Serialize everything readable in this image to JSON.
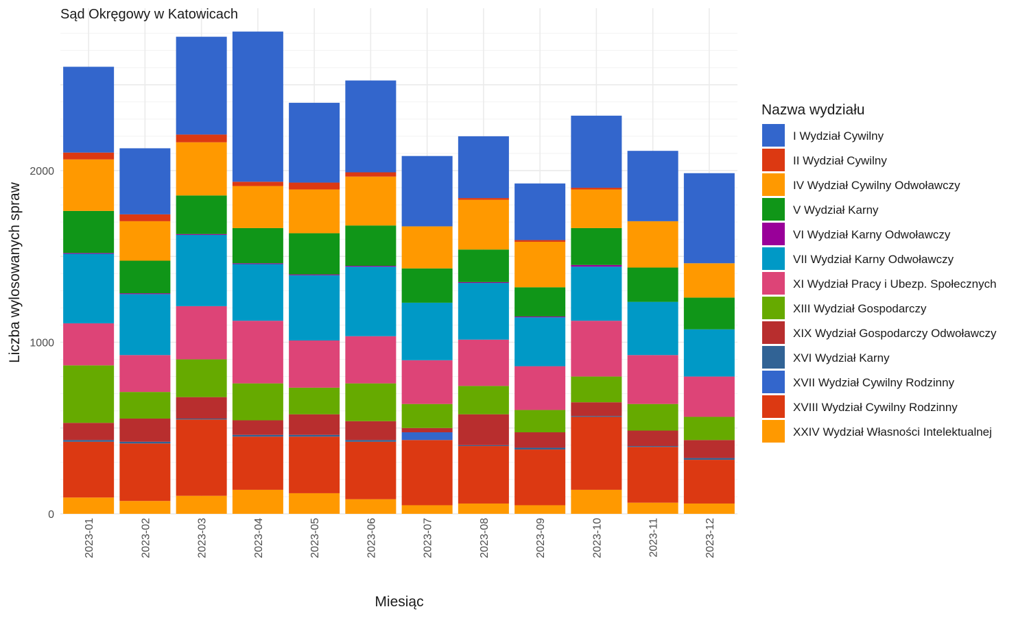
{
  "chart_data": {
    "type": "bar",
    "stacked": true,
    "title": "Sąd Okręgowy w Katowicach",
    "xlabel": "Miesiąc",
    "ylabel": "Liczba wylosowanych spraw",
    "ylim": [
      0,
      2800
    ],
    "yticks": [
      0,
      1000,
      2000
    ],
    "grid": true,
    "legend_title": "Nazwa wydziału",
    "legend_position": "right",
    "categories": [
      "2023-01",
      "2023-02",
      "2023-03",
      "2023-04",
      "2023-05",
      "2023-06",
      "2023-07",
      "2023-08",
      "2023-09",
      "2023-10",
      "2023-11",
      "2023-12"
    ],
    "series": [
      {
        "name": "XXIV Wydział Własności Intelektualnej",
        "color": "#FF9900",
        "values": [
          95,
          75,
          105,
          140,
          120,
          85,
          50,
          60,
          50,
          140,
          65,
          60
        ]
      },
      {
        "name": "XVIII Wydział Cywilny Rodzinny",
        "color": "#DC3912",
        "values": [
          325,
          335,
          445,
          310,
          330,
          335,
          380,
          335,
          325,
          425,
          325,
          255
        ]
      },
      {
        "name": "XVII Wydział Cywilny Rodzinny",
        "color": "#3366CC",
        "values": [
          0,
          0,
          0,
          0,
          0,
          0,
          45,
          0,
          0,
          0,
          0,
          0
        ]
      },
      {
        "name": "XVI Wydział Karny",
        "color": "#316395",
        "values": [
          10,
          10,
          5,
          10,
          10,
          10,
          0,
          5,
          10,
          5,
          5,
          10
        ]
      },
      {
        "name": "XIX Wydział Gospodarczy Odwoławczy",
        "color": "#B82E2E",
        "values": [
          100,
          135,
          125,
          85,
          120,
          110,
          25,
          180,
          90,
          80,
          90,
          105
        ]
      },
      {
        "name": "XIII Wydział Gospodarczy",
        "color": "#66AA00",
        "values": [
          335,
          155,
          220,
          215,
          155,
          220,
          140,
          165,
          130,
          150,
          155,
          135
        ]
      },
      {
        "name": "XI Wydział Pracy i Ubezp. Społecznych",
        "color": "#DD4477",
        "values": [
          245,
          215,
          310,
          365,
          275,
          275,
          255,
          270,
          255,
          325,
          285,
          235
        ]
      },
      {
        "name": "VII Wydział Karny Odwoławczy",
        "color": "#0099C6",
        "values": [
          405,
          355,
          415,
          330,
          380,
          405,
          335,
          330,
          285,
          315,
          310,
          275
        ]
      },
      {
        "name": "VI Wydział Karny Odwoławczy",
        "color": "#990099",
        "values": [
          5,
          5,
          5,
          5,
          5,
          5,
          0,
          5,
          5,
          10,
          0,
          0
        ]
      },
      {
        "name": "V Wydział Karny",
        "color": "#109618",
        "values": [
          245,
          190,
          225,
          205,
          240,
          235,
          200,
          190,
          170,
          215,
          200,
          185
        ]
      },
      {
        "name": "IV Wydział Cywilny Odwoławczy",
        "color": "#FF9900",
        "values": [
          300,
          230,
          310,
          245,
          255,
          285,
          245,
          290,
          265,
          225,
          270,
          200
        ]
      },
      {
        "name": "II Wydział Cywilny",
        "color": "#DC3912",
        "values": [
          40,
          40,
          45,
          25,
          40,
          25,
          0,
          10,
          10,
          10,
          0,
          0
        ]
      },
      {
        "name": "I Wydział Cywilny",
        "color": "#3366CC",
        "values": [
          500,
          385,
          570,
          875,
          465,
          535,
          410,
          360,
          330,
          420,
          410,
          525
        ]
      }
    ],
    "legend": [
      {
        "label": "I Wydział Cywilny",
        "color": "#3366CC"
      },
      {
        "label": "II Wydział Cywilny",
        "color": "#DC3912"
      },
      {
        "label": "IV Wydział Cywilny Odwoławczy",
        "color": "#FF9900"
      },
      {
        "label": "V Wydział Karny",
        "color": "#109618"
      },
      {
        "label": "VI Wydział Karny Odwoławczy",
        "color": "#990099"
      },
      {
        "label": "VII Wydział Karny Odwoławczy",
        "color": "#0099C6"
      },
      {
        "label": "XI Wydział Pracy i Ubezp. Społecznych",
        "color": "#DD4477"
      },
      {
        "label": "XIII Wydział Gospodarczy",
        "color": "#66AA00"
      },
      {
        "label": "XIX Wydział Gospodarczy Odwoławczy",
        "color": "#B82E2E"
      },
      {
        "label": "XVI Wydział Karny",
        "color": "#316395"
      },
      {
        "label": "XVII Wydział Cywilny Rodzinny",
        "color": "#3366CC"
      },
      {
        "label": "XVIII Wydział Cywilny Rodzinny",
        "color": "#DC3912"
      },
      {
        "label": "XXIV Wydział Własności Intelektualnej",
        "color": "#FF9900"
      }
    ]
  }
}
